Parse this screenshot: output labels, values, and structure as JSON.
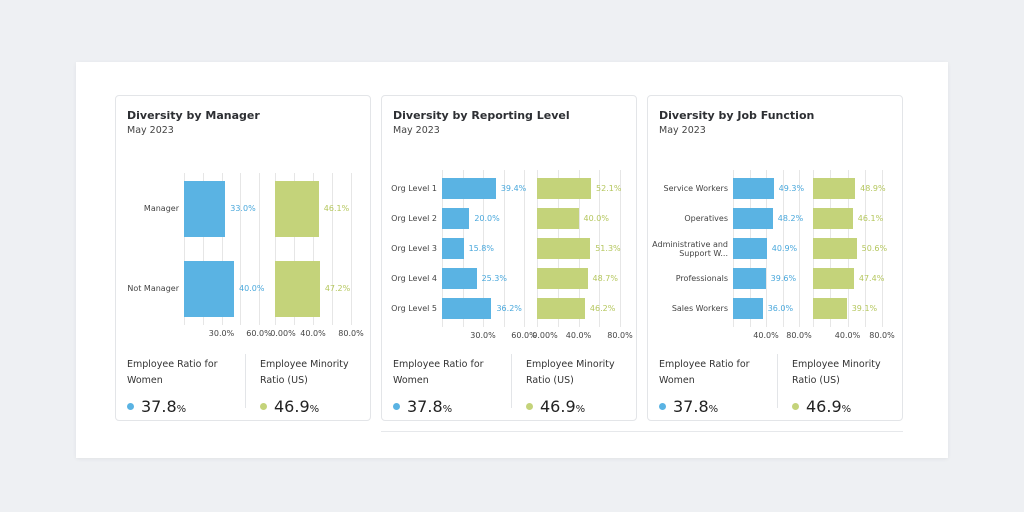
{
  "colors": {
    "women": "#5ab3e3",
    "minority": "#c4d37a",
    "women_text": "#4aa8dc",
    "minority_text": "#b5c75e"
  },
  "cards": [
    {
      "title": "Diversity by Manager",
      "subtitle": "May 2023",
      "categories": [
        "Manager",
        "Not Manager"
      ],
      "women": [
        33.0,
        40.0
      ],
      "minority": [
        46.1,
        47.2
      ],
      "women_labels": [
        "33.0%",
        "40.0%"
      ],
      "minority_labels": [
        "46.1%",
        "47.2%"
      ],
      "women_ticks": [
        "30.0%",
        "60.0%"
      ],
      "minority_ticks": [
        "0.00%",
        "40.0%",
        "80.0%"
      ],
      "women_axis_max": 60,
      "minority_axis_max": 80,
      "kpi_women_label": "Employee Ratio for Women",
      "kpi_women_value": "37.8",
      "kpi_minority_label": "Employee Minority Ratio (US)",
      "kpi_minority_value": "46.9",
      "unit": "%"
    },
    {
      "title": "Diversity by Reporting Level",
      "subtitle": "May 2023",
      "categories": [
        "Org Level 1",
        "Org Level 2",
        "Org Level 3",
        "Org Level 4",
        "Org Level 5"
      ],
      "women": [
        39.4,
        20.0,
        15.8,
        25.3,
        36.2
      ],
      "minority": [
        52.1,
        40.0,
        51.3,
        48.7,
        46.2
      ],
      "women_labels": [
        "39.4%",
        "20.0%",
        "15.8%",
        "25.3%",
        "36.2%"
      ],
      "minority_labels": [
        "52.1%",
        "40.0%",
        "51.3%",
        "48.7%",
        "46.2%"
      ],
      "women_ticks": [
        "30.0%",
        "60.0%"
      ],
      "minority_ticks": [
        "0.00%",
        "40.0%",
        "80.0%"
      ],
      "women_axis_max": 60,
      "minority_axis_max": 80,
      "kpi_women_label": "Employee Ratio for Women",
      "kpi_women_value": "37.8",
      "kpi_minority_label": "Employee Minority Ratio (US)",
      "kpi_minority_value": "46.9",
      "unit": "%"
    },
    {
      "title": "Diversity by Job Function",
      "subtitle": "May 2023",
      "categories": [
        "Service Workers",
        "Operatives",
        "Administrative and Support W...",
        "Professionals",
        "Sales Workers"
      ],
      "women": [
        49.3,
        48.2,
        40.9,
        39.6,
        36.0
      ],
      "minority": [
        48.9,
        46.1,
        50.6,
        47.4,
        39.1
      ],
      "women_labels": [
        "49.3%",
        "48.2%",
        "40.9%",
        "39.6%",
        "36.0%"
      ],
      "minority_labels": [
        "48.9%",
        "46.1%",
        "50.6%",
        "47.4%",
        "39.1%"
      ],
      "women_ticks": [
        "40.0%",
        "80.0%"
      ],
      "minority_ticks": [
        "40.0%",
        "80.0%"
      ],
      "women_axis_max": 80,
      "minority_axis_max": 80,
      "kpi_women_label": "Employee Ratio for Women",
      "kpi_women_value": "37.8",
      "kpi_minority_label": "Employee Minority Ratio (US)",
      "kpi_minority_value": "46.9",
      "unit": "%"
    }
  ]
}
